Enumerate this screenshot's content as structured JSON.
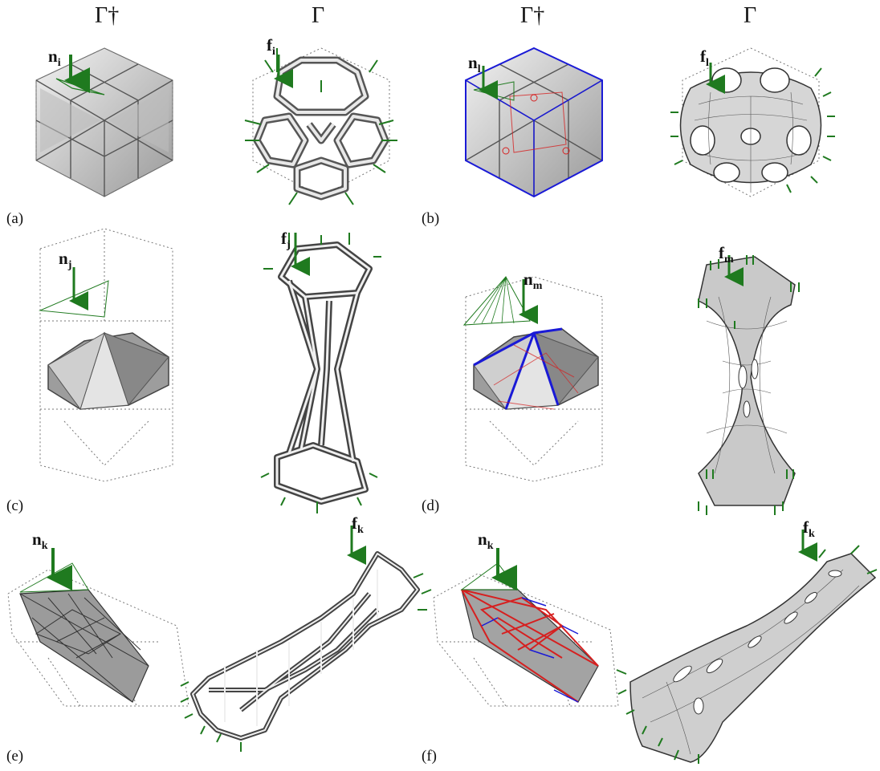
{
  "headers": {
    "col1": "Γ†",
    "col2": "Γ",
    "col3": "Γ†",
    "col4": "Γ"
  },
  "panel_labels": {
    "a": "(a)",
    "b": "(b)",
    "c": "(c)",
    "d": "(d)",
    "e": "(e)",
    "f": "(f)"
  },
  "vectors": {
    "a_n": {
      "base": "n",
      "sub": "i"
    },
    "a_f": {
      "base": "f",
      "sub": "i"
    },
    "b_n": {
      "base": "n",
      "sub": "l"
    },
    "b_f": {
      "base": "f",
      "sub": "l"
    },
    "c_n": {
      "base": "n",
      "sub": "j"
    },
    "c_f": {
      "base": "f",
      "sub": "j"
    },
    "d_n": {
      "base": "n",
      "sub": "m"
    },
    "d_f": {
      "base": "f",
      "sub": "m"
    },
    "e_n": {
      "base": "n",
      "sub": "k"
    },
    "e_f": {
      "base": "f",
      "sub": "k"
    },
    "f_n": {
      "base": "n",
      "sub": "k"
    },
    "f_f": {
      "base": "f",
      "sub": "k"
    }
  },
  "colors": {
    "force_green": "#1f7a1f",
    "boundary_blue": "#1a1ad6",
    "edge_red": "#d62020",
    "surface_gray": "#c8c8c8",
    "dashed_gray": "#777777"
  }
}
